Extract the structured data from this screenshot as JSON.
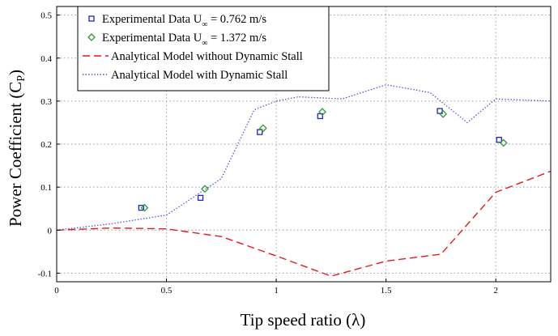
{
  "chart_data": {
    "type": "line",
    "title": "",
    "xlabel": "Tip speed ratio (λ)",
    "ylabel_main": "Power Coefficient (C",
    "ylabel_sub": "P",
    "ylabel_close": ")",
    "xlim": [
      0,
      2.25
    ],
    "ylim": [
      -0.12,
      0.52
    ],
    "x_ticks": [
      0,
      0.5,
      1,
      1.5,
      2
    ],
    "x_tick_labels": [
      "0",
      "0.5",
      "1",
      "1.5",
      "2"
    ],
    "y_ticks": [
      -0.1,
      0,
      0.1,
      0.2,
      0.3,
      0.4,
      0.5
    ],
    "y_tick_labels": [
      "-0.1",
      "0",
      "0.1",
      "0.2",
      "0.3",
      "0.4",
      "0.5"
    ],
    "grid": true,
    "legend_position": "top-left",
    "series": [
      {
        "kind": "scatter",
        "marker": "square",
        "color": "#1f1fd6",
        "label_main": "Experimental Data U",
        "label_sub": "∞",
        "label_tail": " = 0.762 m/s",
        "x": [
          0.385,
          0.655,
          0.925,
          1.2,
          1.745,
          2.015
        ],
        "y": [
          0.052,
          0.075,
          0.228,
          0.265,
          0.277,
          0.21
        ]
      },
      {
        "kind": "scatter",
        "marker": "diamond",
        "color": "#2e9a2e",
        "label_main": "Experimental Data U",
        "label_sub": "∞",
        "label_tail": " = 1.372 m/s",
        "x": [
          0.4,
          0.675,
          0.94,
          1.21,
          1.76,
          2.035
        ],
        "y": [
          0.052,
          0.096,
          0.237,
          0.275,
          0.27,
          0.203
        ]
      },
      {
        "kind": "line",
        "style": "dashed",
        "color": "#e31a1c",
        "label_main": "Analytical Model without Dynamic Stall",
        "x": [
          0,
          0.25,
          0.5,
          0.75,
          1.0,
          1.25,
          1.5,
          1.75,
          2.0,
          2.25
        ],
        "y": [
          0.0,
          0.005,
          0.003,
          -0.015,
          -0.06,
          -0.107,
          -0.072,
          -0.056,
          0.088,
          0.137
        ]
      },
      {
        "kind": "line",
        "style": "dotted",
        "color": "#4b4bd4",
        "label_main": "Analytical Model with Dynamic Stall",
        "x": [
          0,
          0.25,
          0.5,
          0.75,
          0.9,
          1.0,
          1.1,
          1.3,
          1.5,
          1.7,
          1.87,
          2.0,
          2.25
        ],
        "y": [
          0.0,
          0.015,
          0.035,
          0.12,
          0.28,
          0.3,
          0.31,
          0.305,
          0.338,
          0.32,
          0.25,
          0.305,
          0.3
        ]
      }
    ]
  }
}
